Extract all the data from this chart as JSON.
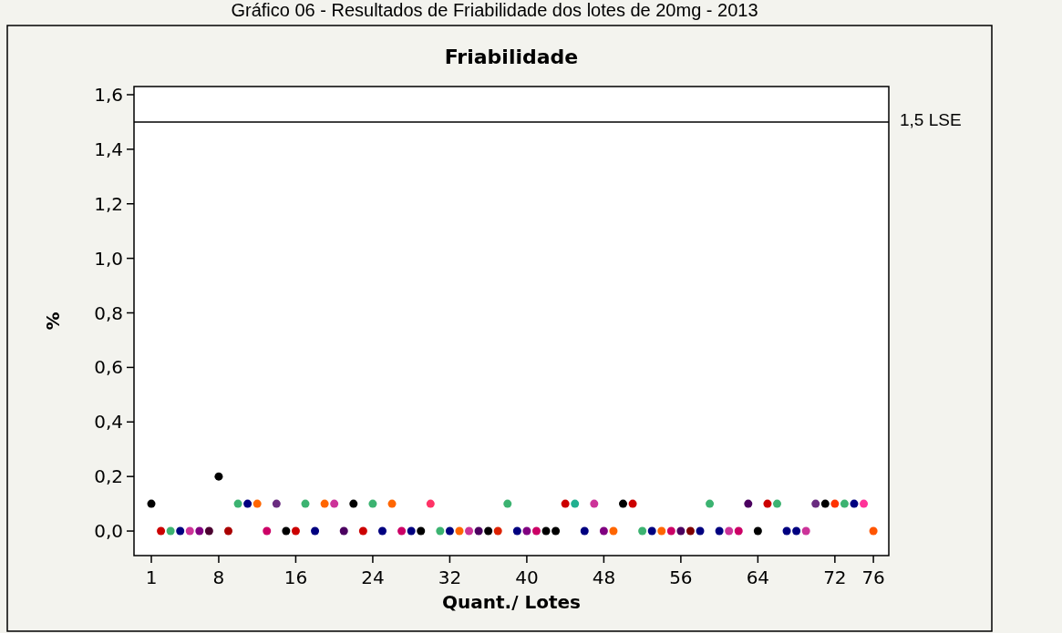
{
  "chart_data": {
    "type": "scatter",
    "title": "Friabilidade",
    "xlabel": "Quant./ Lotes",
    "ylabel": "%",
    "annotations": [
      "Gráfico 06 - Resultados de Friabilidade dos lotes de 20mg - 2013"
    ],
    "x": [
      1,
      2,
      3,
      4,
      5,
      6,
      7,
      8,
      9,
      10,
      11,
      12,
      13,
      14,
      15,
      16,
      17,
      18,
      19,
      20,
      21,
      22,
      23,
      24,
      25,
      26,
      27,
      28,
      29,
      30,
      31,
      32,
      33,
      34,
      35,
      36,
      37,
      38,
      39,
      40,
      41,
      42,
      43,
      44,
      45,
      46,
      47,
      48,
      49,
      50,
      51,
      52,
      53,
      54,
      55,
      56,
      57,
      58,
      59,
      60,
      61,
      62,
      63,
      64,
      65,
      66,
      67,
      68,
      69,
      70,
      71,
      72,
      73,
      74,
      75,
      76
    ],
    "series": [
      {
        "values": [
          0.1,
          0,
          0,
          0,
          0,
          0,
          0,
          0.2,
          0,
          0.1,
          0.1,
          0.1,
          0,
          0.1,
          0,
          0,
          0.1,
          0,
          0.1,
          0.1,
          0,
          0.1,
          0,
          0.1,
          0,
          0.1,
          0,
          0,
          0,
          0.1,
          0,
          0,
          0,
          0,
          0,
          0,
          0,
          0.1,
          0,
          0,
          0,
          0,
          0,
          0.1,
          0.1,
          0,
          0.1,
          0,
          0,
          0.1,
          0.1,
          0,
          0,
          0,
          0,
          0,
          0,
          0,
          0.1,
          0,
          0,
          0,
          0.1,
          0,
          0.1,
          0.1,
          0,
          0,
          0,
          0.1,
          0.1,
          0.1,
          0.1,
          0.1,
          0.1,
          0
        ],
        "colors": [
          "#000000",
          "#cc0000",
          "#3cb371",
          "#000080",
          "#cc3399",
          "#800080",
          "#4b0030",
          "#000000",
          "#aa0000",
          "#3cb371",
          "#000080",
          "#ff6600",
          "#cc0066",
          "#6a2c80",
          "#000000",
          "#cc0000",
          "#3cb371",
          "#000080",
          "#ff6600",
          "#cc3399",
          "#4b0060",
          "#000000",
          "#cc0000",
          "#3cb371",
          "#000080",
          "#ff6600",
          "#cc0066",
          "#000080",
          "#000000",
          "#ff3366",
          "#3cb371",
          "#000080",
          "#ff6600",
          "#cc3399",
          "#4b0060",
          "#000000",
          "#dd2200",
          "#3cb371",
          "#000080",
          "#800080",
          "#cc0066",
          "#000000",
          "#000000",
          "#cc0000",
          "#20b090",
          "#000080",
          "#cc3399",
          "#800080",
          "#ff6600",
          "#000000",
          "#cc0000",
          "#3cb371",
          "#000080",
          "#ff6600",
          "#cc0066",
          "#4b0060",
          "#800000",
          "#000080",
          "#3cb371",
          "#000080",
          "#cc3399",
          "#cc0066",
          "#4b0060",
          "#000000",
          "#cc0000",
          "#3cb371",
          "#000080",
          "#000080",
          "#cc3399",
          "#6a2c80",
          "#000000",
          "#ff3300",
          "#3cb371",
          "#000080",
          "#ff3399",
          "#ff5500"
        ]
      }
    ],
    "marker": "circle",
    "grid": false,
    "xlim": [
      -0.8,
      77.6
    ],
    "xticks": [
      1,
      8,
      16,
      24,
      32,
      40,
      48,
      56,
      64,
      72,
      76
    ],
    "ylim": [
      -0.09,
      1.63
    ],
    "yticks": [
      {
        "value": 0,
        "label": "0,0"
      },
      {
        "value": 0.2,
        "label": "0,2"
      },
      {
        "value": 0.4,
        "label": "0,4"
      },
      {
        "value": 0.6,
        "label": "0,6"
      },
      {
        "value": 0.8,
        "label": "0,8"
      },
      {
        "value": 1,
        "label": "1,0"
      },
      {
        "value": 1.2,
        "label": "1,2"
      },
      {
        "value": 1.4,
        "label": "1,4"
      },
      {
        "value": 1.6,
        "label": "1,6"
      }
    ],
    "ref_lines": [
      {
        "axis": "y",
        "value": 1.5,
        "label": "1,5 LSE",
        "color": "#000000"
      }
    ]
  }
}
